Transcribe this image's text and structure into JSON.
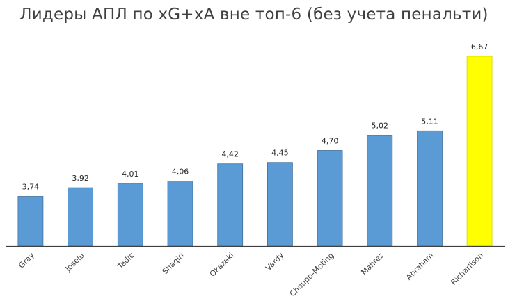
{
  "chart_data": {
    "type": "bar",
    "title": "Лидеры АПЛ по xG+xA вне топ-6 (без учета пенальти)",
    "categories": [
      "Gray",
      "Joselu",
      "Tadic",
      "Shaqiri",
      "Okazaki",
      "Vardy",
      "Choupo-Moting",
      "Mahrez",
      "Abraham",
      "Richarlison"
    ],
    "values": [
      3.74,
      3.92,
      4.01,
      4.06,
      4.42,
      4.45,
      4.7,
      5.02,
      5.11,
      6.67
    ],
    "value_labels": [
      "3,74",
      "3,92",
      "4,01",
      "4,06",
      "4,42",
      "4,45",
      "4,70",
      "5,02",
      "5,11",
      "6,67"
    ],
    "ylim": [
      2.7,
      6.67
    ],
    "colors": {
      "bar": "#5B9BD5",
      "bar_edge": "#41719C",
      "highlight": "#FFFF00",
      "highlight_edge": "#D4D400",
      "axis": "#404040"
    },
    "highlight_index": 9,
    "grid": false,
    "legend": "none"
  }
}
